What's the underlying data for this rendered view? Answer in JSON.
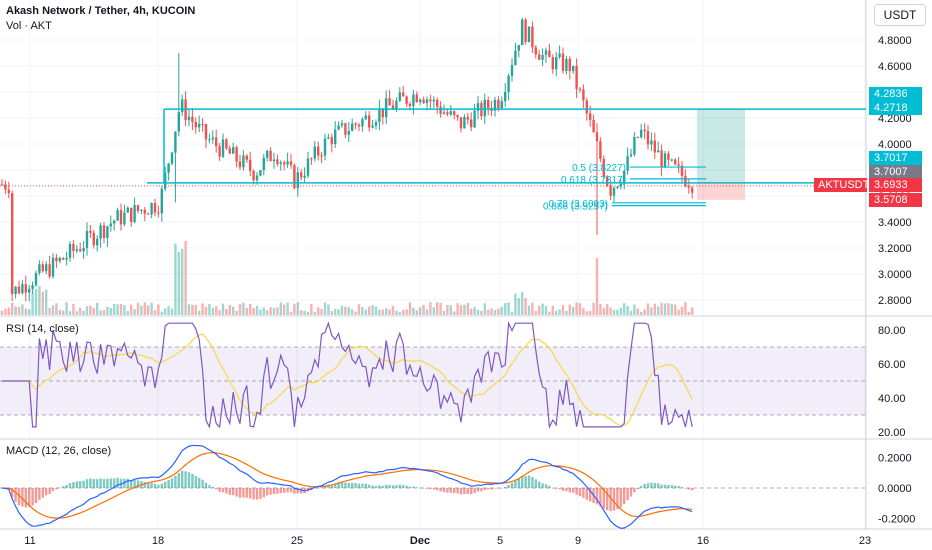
{
  "header": {
    "symbol_title": "Akash Network / Tether, 4h, KUCOIN",
    "volume_label": "Vol · AKT"
  },
  "currency_button": "USDT",
  "colors": {
    "up": "#26a69a",
    "down": "#ef5350",
    "rsi": "#7e57c2",
    "rsi_ma": "#f7d74a",
    "macd": "#2962ff",
    "signal": "#ff6d00",
    "level": "#00bcd4",
    "price_tag": "#f23645"
  },
  "panes": {
    "rsi_title": "RSI (14, close)",
    "macd_title": "MACD (12, 26, close)"
  },
  "x_axis_labels": [
    "11",
    "18",
    "25",
    "Dec",
    "5",
    "9",
    "16",
    "23"
  ],
  "price_tags": {
    "top_level": "4.2836",
    "level_line": "4.2718",
    "fib_high": "3.7017",
    "fib_mid": "3.7007",
    "symbol_label": "AKTUSDT",
    "last_price": "3.6933",
    "stop": "3.5708"
  },
  "fib_labels": {
    "f05": "0.5 (3.8227)",
    "f0618": "0.618 (3.7317)",
    "f078": "0.78 (3.6093)",
    "f0886": "0.886 (3.5257)"
  },
  "chart_data": [
    {
      "type": "candlestick",
      "title": "Akash Network / Tether, 4h, KUCOIN",
      "y_ticks": [
        "4.8000",
        "4.6000",
        "4.4000",
        "4.2000",
        "4.0000",
        "3.8000",
        "3.6000",
        "3.4000",
        "3.2000",
        "3.0000",
        "2.8000"
      ],
      "ylim": [
        2.75,
        5.0
      ],
      "x_labels": [
        "11",
        "18",
        "25",
        "Dec",
        "5",
        "9",
        "16",
        "23"
      ],
      "approx_close_path": [
        {
          "x": "11",
          "close": 2.85
        },
        {
          "x": "14",
          "close": 3.1
        },
        {
          "x": "17",
          "close": 3.42
        },
        {
          "x": "18",
          "close": 3.55
        },
        {
          "x": "19",
          "close": 4.3
        },
        {
          "x": "20",
          "close": 4.05
        },
        {
          "x": "21",
          "close": 3.92
        },
        {
          "x": "22",
          "close": 3.78
        },
        {
          "x": "24",
          "close": 3.95
        },
        {
          "x": "25",
          "close": 3.72
        },
        {
          "x": "27",
          "close": 4.05
        },
        {
          "x": "29",
          "close": 4.25
        },
        {
          "x": "Dec",
          "close": 4.4
        },
        {
          "x": "3",
          "close": 4.15
        },
        {
          "x": "5",
          "close": 4.35
        },
        {
          "x": "6",
          "close": 4.9
        },
        {
          "x": "7",
          "close": 4.65
        },
        {
          "x": "8",
          "close": 4.6
        },
        {
          "x": "9",
          "close": 4.2
        },
        {
          "x": "10",
          "close": 3.65
        },
        {
          "x": "11",
          "close": 3.8
        },
        {
          "x": "12",
          "close": 4.1
        },
        {
          "x": "13",
          "close": 3.85
        },
        {
          "x": "14",
          "close": 3.69
        }
      ],
      "last_price": 3.6933,
      "horizontal_levels": [
        4.2836,
        4.2718,
        3.7017,
        3.7007,
        3.6933
      ],
      "fib_levels": [
        {
          "ratio": "0.5",
          "value": 3.8227
        },
        {
          "ratio": "0.618",
          "value": 3.7317
        },
        {
          "ratio": "0.78",
          "value": 3.6093
        },
        {
          "ratio": "0.886",
          "value": 3.5257
        }
      ],
      "position_box": {
        "target": 4.2718,
        "entry": 3.7007,
        "stop": 3.5708
      }
    },
    {
      "type": "line",
      "title": "RSI (14, close)",
      "y_ticks": [
        "80.00",
        "60.00",
        "40.00",
        "20.00"
      ],
      "ylim": [
        17,
        87
      ],
      "bands": [
        70,
        50,
        30
      ],
      "approx_last": 36
    },
    {
      "type": "line",
      "title": "MACD (12, 26, close)",
      "y_ticks": [
        "0.2000",
        "0.0000",
        "-0.2000"
      ],
      "ylim": [
        -0.24,
        0.24
      ],
      "series": [
        {
          "name": "MACD",
          "min": -0.18,
          "max": 0.23
        },
        {
          "name": "Signal",
          "min": -0.16,
          "max": 0.2
        }
      ]
    }
  ]
}
